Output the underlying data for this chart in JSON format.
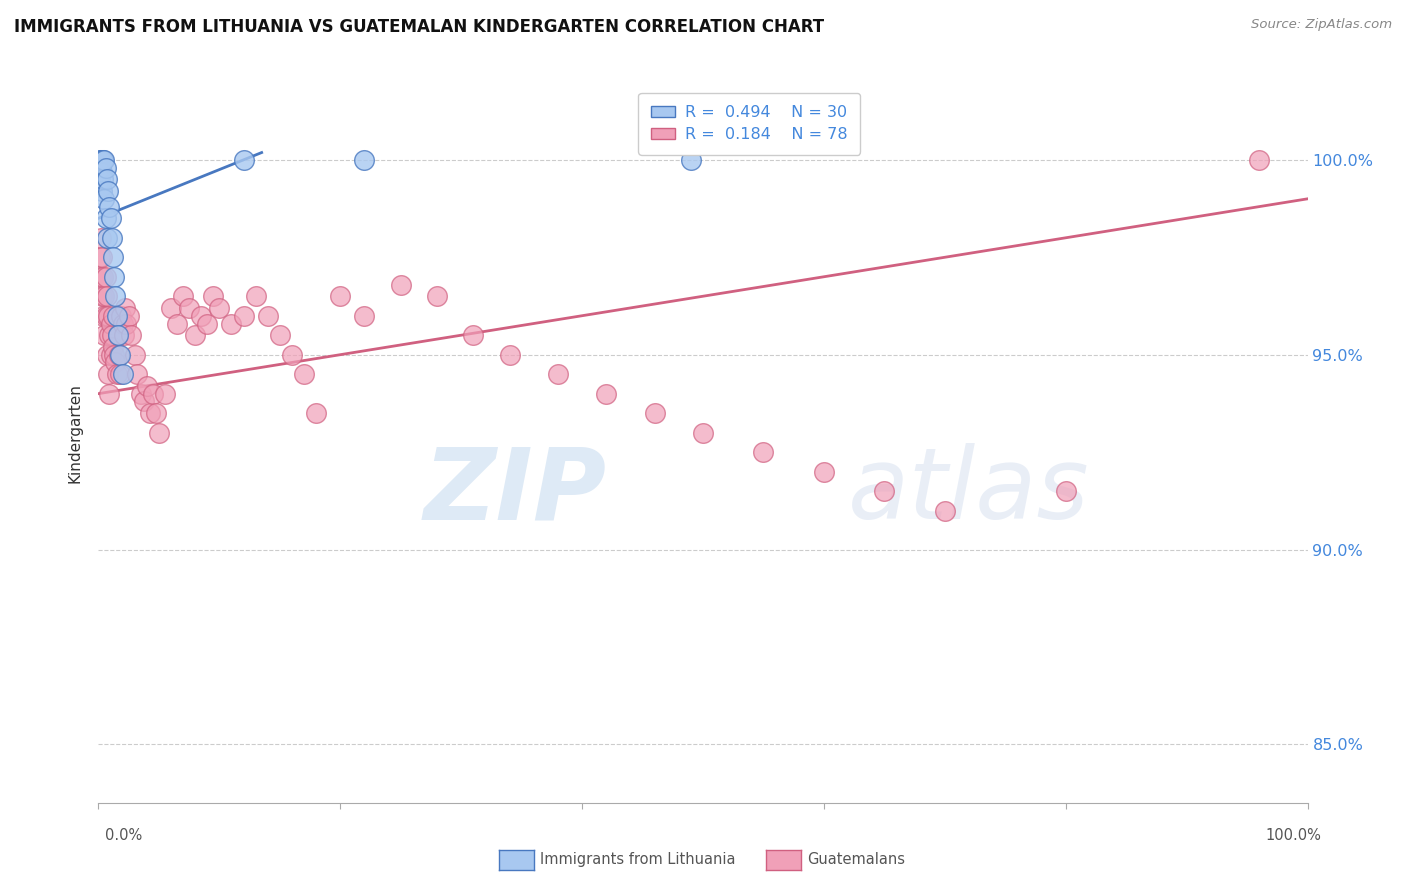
{
  "title": "IMMIGRANTS FROM LITHUANIA VS GUATEMALAN KINDERGARTEN CORRELATION CHART",
  "source": "Source: ZipAtlas.com",
  "ylabel": "Kindergarten",
  "ylim": [
    83.5,
    102.5
  ],
  "xlim": [
    0.0,
    1.0
  ],
  "yticks": [
    85.0,
    90.0,
    95.0,
    100.0
  ],
  "ytick_labels": [
    "85.0%",
    "90.0%",
    "95.0%",
    "100.0%"
  ],
  "legend_blue_r": "0.494",
  "legend_blue_n": "30",
  "legend_pink_r": "0.184",
  "legend_pink_n": "78",
  "blue_fill": "#A8C8F0",
  "blue_edge": "#4878C0",
  "pink_fill": "#F0A0B8",
  "pink_edge": "#D06080",
  "blue_line": "#4878C0",
  "pink_line": "#D06080",
  "grid_color": "#CCCCCC",
  "blue_x": [
    0.001,
    0.001,
    0.002,
    0.002,
    0.002,
    0.003,
    0.003,
    0.003,
    0.004,
    0.004,
    0.005,
    0.005,
    0.006,
    0.006,
    0.007,
    0.007,
    0.008,
    0.009,
    0.01,
    0.011,
    0.012,
    0.013,
    0.014,
    0.015,
    0.016,
    0.018,
    0.02,
    0.12,
    0.22,
    0.49
  ],
  "blue_y": [
    100.0,
    99.5,
    100.0,
    99.8,
    99.3,
    100.0,
    99.7,
    99.2,
    100.0,
    99.5,
    100.0,
    99.0,
    99.8,
    98.5,
    99.5,
    98.0,
    99.2,
    98.8,
    98.5,
    98.0,
    97.5,
    97.0,
    96.5,
    96.0,
    95.5,
    95.0,
    94.5,
    100.0,
    100.0,
    100.0
  ],
  "pink_x": [
    0.001,
    0.002,
    0.002,
    0.003,
    0.003,
    0.004,
    0.004,
    0.005,
    0.005,
    0.006,
    0.006,
    0.007,
    0.007,
    0.008,
    0.008,
    0.009,
    0.009,
    0.01,
    0.01,
    0.011,
    0.012,
    0.012,
    0.013,
    0.014,
    0.015,
    0.016,
    0.017,
    0.018,
    0.019,
    0.02,
    0.021,
    0.022,
    0.023,
    0.025,
    0.027,
    0.03,
    0.032,
    0.035,
    0.038,
    0.04,
    0.043,
    0.045,
    0.048,
    0.05,
    0.055,
    0.06,
    0.065,
    0.07,
    0.075,
    0.08,
    0.085,
    0.09,
    0.095,
    0.1,
    0.11,
    0.12,
    0.13,
    0.14,
    0.15,
    0.16,
    0.17,
    0.18,
    0.2,
    0.22,
    0.25,
    0.28,
    0.31,
    0.34,
    0.38,
    0.42,
    0.46,
    0.5,
    0.55,
    0.6,
    0.65,
    0.7,
    0.8,
    0.96
  ],
  "pink_y": [
    97.5,
    98.0,
    97.0,
    97.5,
    96.5,
    97.0,
    96.0,
    96.5,
    95.5,
    97.0,
    96.0,
    96.5,
    95.0,
    96.0,
    94.5,
    95.5,
    94.0,
    95.8,
    95.0,
    95.5,
    96.0,
    95.2,
    95.0,
    94.8,
    94.5,
    95.5,
    95.0,
    94.5,
    96.0,
    95.8,
    95.5,
    96.2,
    95.8,
    96.0,
    95.5,
    95.0,
    94.5,
    94.0,
    93.8,
    94.2,
    93.5,
    94.0,
    93.5,
    93.0,
    94.0,
    96.2,
    95.8,
    96.5,
    96.2,
    95.5,
    96.0,
    95.8,
    96.5,
    96.2,
    95.8,
    96.0,
    96.5,
    96.0,
    95.5,
    95.0,
    94.5,
    93.5,
    96.5,
    96.0,
    96.8,
    96.5,
    95.5,
    95.0,
    94.5,
    94.0,
    93.5,
    93.0,
    92.5,
    92.0,
    91.5,
    91.0,
    91.5,
    100.0
  ]
}
